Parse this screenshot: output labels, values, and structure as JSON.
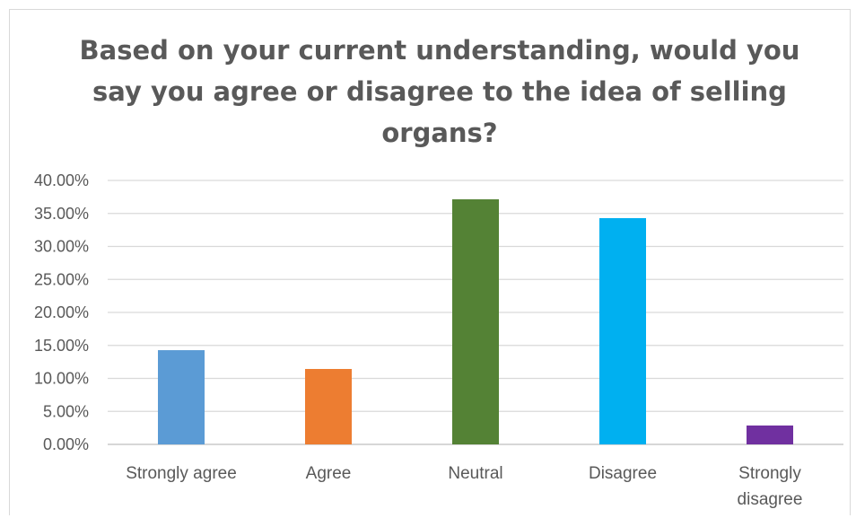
{
  "chart_data": {
    "type": "bar",
    "title": "Based on your current understanding, would you say you agree or disagree to the idea of selling organs?",
    "categories": [
      "Strongly agree",
      "Agree",
      "Neutral",
      "Disagree",
      "Strongly disagree"
    ],
    "values": [
      0.1428,
      0.1143,
      0.3714,
      0.3429,
      0.0286
    ],
    "colors": [
      "#5b9bd5",
      "#ed7d31",
      "#548235",
      "#00b0f0",
      "#7030a0"
    ],
    "ylim": [
      0,
      0.4
    ],
    "yticks": [
      "0.00%",
      "5.00%",
      "10.00%",
      "15.00%",
      "20.00%",
      "25.00%",
      "30.00%",
      "35.00%",
      "40.00%"
    ],
    "grid": true,
    "legend": "none"
  }
}
